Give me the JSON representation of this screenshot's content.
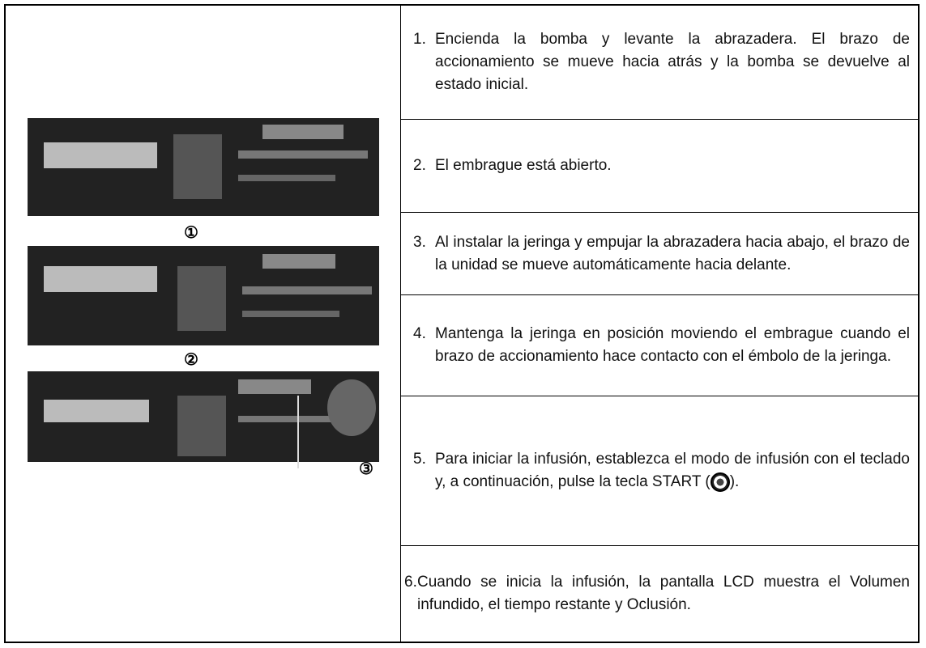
{
  "steps": [
    {
      "number": "1.",
      "text": "Encienda la bomba y levante la abrazadera. El brazo de accionamiento se mueve hacia atrás y la bomba se devuelve al estado inicial."
    },
    {
      "number": "2.",
      "text": "El embrague está abierto."
    },
    {
      "number": "3.",
      "text": "Al instalar la jeringa y empujar la abrazadera hacia abajo, el brazo de la unidad se mueve automáticamente hacia delante."
    },
    {
      "number": "4.",
      "text": "Mantenga la jeringa en posición moviendo el embrague cuando el brazo de accionamiento hace contacto con el émbolo de la jeringa."
    },
    {
      "number": "5.",
      "text": "Para iniciar la infusión, establezca el modo de infusión con el teclado y, a continuación, pulse la tecla START (",
      "text_after": ")."
    },
    {
      "number": "6.",
      "text": "Cuando se inicia la infusión, la pantalla LCD muestra el Volumen infundido, el tiempo restante y Oclusión."
    }
  ],
  "figure_labels": [
    "①",
    "②",
    "③"
  ]
}
